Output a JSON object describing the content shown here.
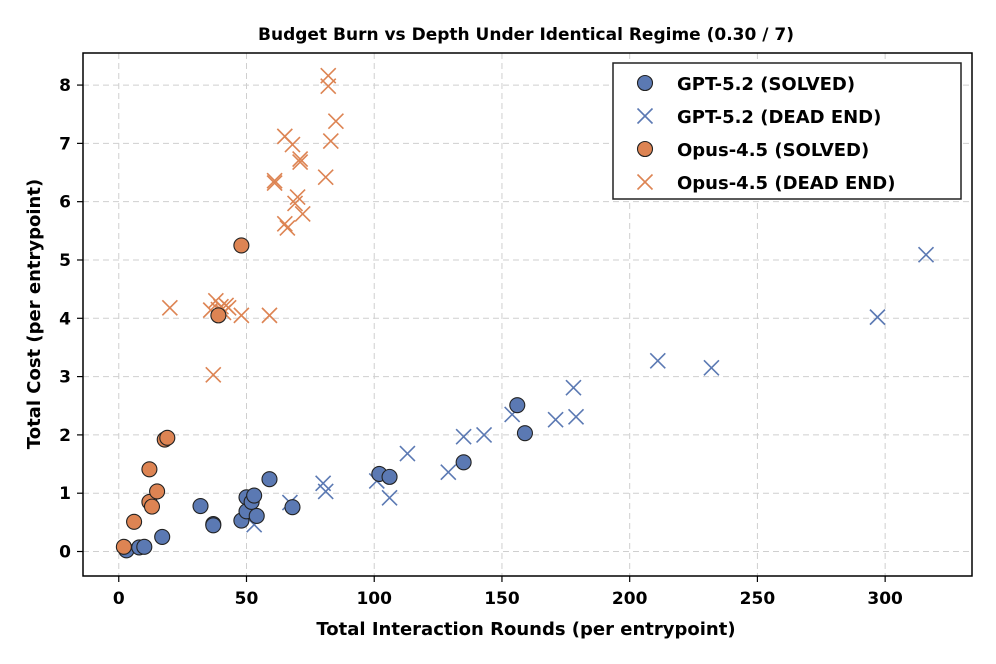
{
  "chart_data": {
    "type": "scatter",
    "title": "Budget Burn vs Depth Under Identical Regime (0.30 / 7)",
    "xlabel": "Total Interaction Rounds (per entrypoint)",
    "ylabel": "Total Cost (per entrypoint)",
    "xlim": [
      -14,
      334
    ],
    "ylim": [
      -0.42,
      8.55
    ],
    "xticks": [
      0,
      50,
      100,
      150,
      200,
      250,
      300
    ],
    "yticks": [
      0,
      1,
      2,
      3,
      4,
      5,
      6,
      7,
      8
    ],
    "grid": true,
    "legend_position": "top-right",
    "colors": {
      "gpt": "#5b79b3",
      "opus": "#dd8453",
      "edge": "#222222"
    },
    "series": [
      {
        "name": "GPT-5.2 (SOLVED)",
        "marker": "circle",
        "color": "#5b79b3",
        "points": [
          [
            3,
            0.02
          ],
          [
            8,
            0.07
          ],
          [
            10,
            0.08
          ],
          [
            17,
            0.25
          ],
          [
            32,
            0.78
          ],
          [
            37,
            0.47
          ],
          [
            37,
            0.45
          ],
          [
            48,
            0.53
          ],
          [
            50,
            0.93
          ],
          [
            50,
            0.69
          ],
          [
            52,
            0.85
          ],
          [
            53,
            0.96
          ],
          [
            54,
            0.61
          ],
          [
            59,
            1.24
          ],
          [
            68,
            0.76
          ],
          [
            102,
            1.33
          ],
          [
            106,
            1.28
          ],
          [
            135,
            1.53
          ],
          [
            156,
            2.51
          ],
          [
            159,
            2.03
          ]
        ]
      },
      {
        "name": "GPT-5.2 (DEAD END)",
        "marker": "x",
        "color": "#5b79b3",
        "points": [
          [
            53,
            0.46
          ],
          [
            67,
            0.84
          ],
          [
            80,
            1.17
          ],
          [
            81,
            1.03
          ],
          [
            101,
            1.21
          ],
          [
            106,
            0.92
          ],
          [
            113,
            1.68
          ],
          [
            129,
            1.36
          ],
          [
            135,
            1.97
          ],
          [
            143,
            2.0
          ],
          [
            154,
            2.35
          ],
          [
            171,
            2.26
          ],
          [
            178,
            2.81
          ],
          [
            179,
            2.31
          ],
          [
            211,
            3.27
          ],
          [
            232,
            3.15
          ],
          [
            297,
            4.02
          ],
          [
            316,
            5.09
          ]
        ]
      },
      {
        "name": "Opus-4.5 (SOLVED)",
        "marker": "circle",
        "color": "#dd8453",
        "points": [
          [
            2,
            0.08
          ],
          [
            6,
            0.51
          ],
          [
            12,
            1.41
          ],
          [
            12,
            0.85
          ],
          [
            13,
            0.77
          ],
          [
            15,
            1.03
          ],
          [
            18,
            1.92
          ],
          [
            19,
            1.95
          ],
          [
            39,
            4.05
          ],
          [
            48,
            5.25
          ]
        ]
      },
      {
        "name": "Opus-4.5 (DEAD END)",
        "marker": "x",
        "color": "#dd8453",
        "points": [
          [
            20,
            4.18
          ],
          [
            36,
            4.14
          ],
          [
            37,
            3.03
          ],
          [
            38,
            4.3
          ],
          [
            39,
            4.15
          ],
          [
            40,
            4.2
          ],
          [
            41,
            4.1
          ],
          [
            42,
            4.22
          ],
          [
            43,
            4.18
          ],
          [
            48,
            4.05
          ],
          [
            59,
            4.05
          ],
          [
            61,
            6.32
          ],
          [
            61,
            6.36
          ],
          [
            65,
            7.12
          ],
          [
            65,
            5.62
          ],
          [
            66,
            5.55
          ],
          [
            68,
            6.98
          ],
          [
            69,
            5.97
          ],
          [
            70,
            6.08
          ],
          [
            71,
            6.68
          ],
          [
            71,
            6.73
          ],
          [
            72,
            5.79
          ],
          [
            81,
            6.42
          ],
          [
            82,
            8.16
          ],
          [
            82,
            7.98
          ],
          [
            83,
            7.04
          ],
          [
            85,
            7.38
          ]
        ]
      }
    ]
  }
}
